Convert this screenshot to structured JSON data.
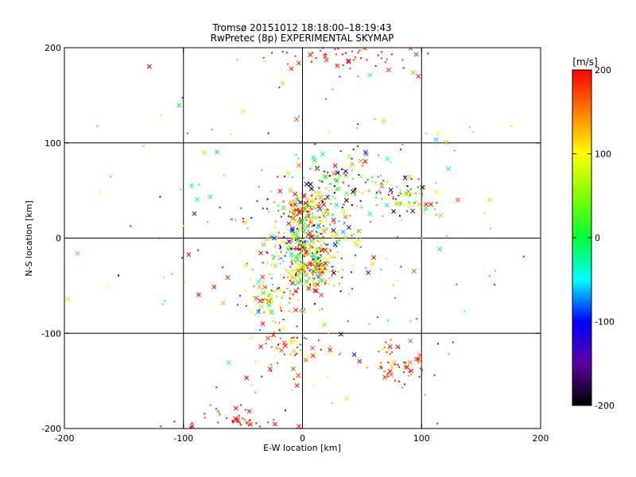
{
  "chart_data": {
    "type": "scatter",
    "title": "Tromsø 20151012 18:18:00–18:19:43",
    "subtitle": "RwPretec (8p) EXPERIMENTAL SKYMAP",
    "xlabel": "E-W location [km]",
    "ylabel": "N-S location [km]",
    "xlim": [
      -200,
      200
    ],
    "ylim": [
      -200,
      200
    ],
    "xticks": [
      -200,
      -100,
      0,
      100,
      200
    ],
    "yticks": [
      -200,
      -100,
      0,
      100,
      200
    ],
    "grid": true,
    "grid_values": [
      -100,
      0,
      100
    ],
    "colorbar": {
      "label": "[m/s]",
      "min": -200,
      "max": 200,
      "ticks": [
        200,
        100,
        0,
        -100,
        -200
      ]
    },
    "marker_types": [
      "dot",
      "cross"
    ],
    "clusters": [
      {
        "x": 0,
        "y": 30,
        "sx": 12,
        "sy": 8,
        "n": 110,
        "v": 140,
        "vs": 80
      },
      {
        "x": 5,
        "y": 0,
        "sx": 15,
        "sy": 15,
        "n": 170,
        "v": 20,
        "vs": 120
      },
      {
        "x": 0,
        "y": -20,
        "sx": 14,
        "sy": 12,
        "n": 150,
        "v": 80,
        "vs": 120
      },
      {
        "x": 10,
        "y": -40,
        "sx": 10,
        "sy": 10,
        "n": 90,
        "v": 110,
        "vs": 100
      },
      {
        "x": -25,
        "y": -65,
        "sx": 12,
        "sy": 15,
        "n": 80,
        "v": 120,
        "vs": 100
      },
      {
        "x": 30,
        "y": 55,
        "sx": 20,
        "sy": 15,
        "n": 90,
        "v": 20,
        "vs": 140
      },
      {
        "x": 85,
        "y": 45,
        "sx": 16,
        "sy": 12,
        "n": 70,
        "v": 80,
        "vs": 130
      },
      {
        "x": 80,
        "y": -135,
        "sx": 10,
        "sy": 10,
        "n": 55,
        "v": 180,
        "vs": 40
      },
      {
        "x": 0,
        "y": -120,
        "sx": 20,
        "sy": 15,
        "n": 45,
        "v": 160,
        "vs": 60
      },
      {
        "x": -60,
        "y": -190,
        "sx": 20,
        "sy": 8,
        "n": 45,
        "v": 195,
        "vs": 15
      },
      {
        "x": 40,
        "y": 190,
        "sx": 35,
        "sy": 8,
        "n": 60,
        "v": 195,
        "vs": 15
      },
      {
        "x": 0,
        "y": 0,
        "sx": 90,
        "sy": 90,
        "n": 260,
        "v": 60,
        "vs": 140
      }
    ]
  }
}
